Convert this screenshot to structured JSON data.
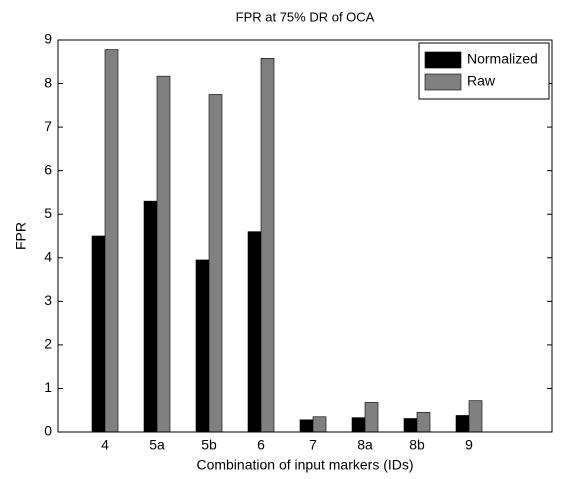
{
  "chart_data": {
    "type": "bar",
    "title": "FPR at 75% DR of OCA",
    "x_label": "Combination of input markers (IDs)",
    "y_label": "FPR",
    "categories": [
      "4",
      "5a",
      "5b",
      "6",
      "7",
      "8a",
      "8b",
      "9"
    ],
    "series": [
      {
        "name": "Normalized",
        "color": "#000000",
        "values": [
          4.5,
          5.3,
          3.95,
          4.6,
          0.28,
          0.33,
          0.31,
          0.38
        ]
      },
      {
        "name": "Raw",
        "color": "#808080",
        "values": [
          8.78,
          8.17,
          7.75,
          8.58,
          0.35,
          0.68,
          0.45,
          0.72
        ]
      }
    ],
    "ylim": [
      0,
      9
    ],
    "yticks": [
      0,
      1,
      2,
      3,
      4,
      5,
      6,
      7,
      8,
      9
    ],
    "legend": "upper right"
  }
}
